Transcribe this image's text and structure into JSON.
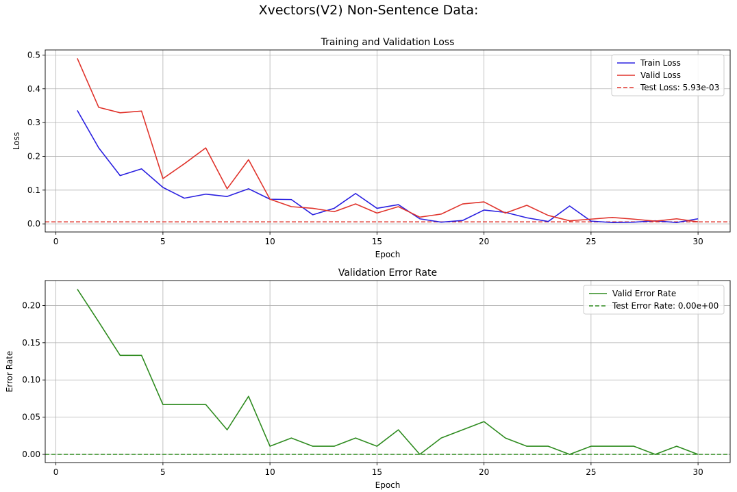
{
  "figure": {
    "title": "Xvectors(V2) Non-Sentence Data:"
  },
  "chart_data": [
    {
      "type": "line",
      "title": "Training and Validation Loss",
      "xlabel": "Epoch",
      "ylabel": "Loss",
      "xlim": [
        -0.5,
        31.5
      ],
      "ylim": [
        -0.024,
        0.515
      ],
      "xticks": [
        0,
        5,
        10,
        15,
        20,
        25,
        30
      ],
      "yticks": [
        0.0,
        0.1,
        0.2,
        0.3,
        0.4,
        0.5
      ],
      "ytick_labels": [
        "0.0",
        "0.1",
        "0.2",
        "0.3",
        "0.4",
        "0.5"
      ],
      "grid": true,
      "legend_position": "top-right",
      "x": [
        1,
        2,
        3,
        4,
        5,
        6,
        7,
        8,
        9,
        10,
        11,
        12,
        13,
        14,
        15,
        16,
        17,
        18,
        19,
        20,
        21,
        22,
        23,
        24,
        25,
        26,
        27,
        28,
        29,
        30
      ],
      "series": [
        {
          "name": "Train Loss",
          "color": "#2a20e0",
          "style": "solid",
          "values": [
            0.336,
            0.225,
            0.143,
            0.163,
            0.108,
            0.076,
            0.088,
            0.081,
            0.104,
            0.073,
            0.072,
            0.027,
            0.046,
            0.09,
            0.046,
            0.057,
            0.015,
            0.005,
            0.01,
            0.041,
            0.034,
            0.018,
            0.007,
            0.053,
            0.008,
            0.004,
            0.005,
            0.009,
            0.004,
            0.015
          ]
        },
        {
          "name": "Valid Loss",
          "color": "#e0332b",
          "style": "solid",
          "values": [
            0.49,
            0.345,
            0.329,
            0.334,
            0.134,
            0.178,
            0.225,
            0.104,
            0.19,
            0.073,
            0.051,
            0.046,
            0.036,
            0.059,
            0.032,
            0.051,
            0.02,
            0.029,
            0.059,
            0.065,
            0.032,
            0.055,
            0.025,
            0.009,
            0.014,
            0.019,
            0.014,
            0.008,
            0.015,
            0.006
          ]
        }
      ],
      "hlines": [
        {
          "name": "Test Loss: 5.93e-03",
          "value": 0.00593,
          "color": "#e0332b",
          "style": "dashed"
        }
      ]
    },
    {
      "type": "line",
      "title": "Validation Error Rate",
      "xlabel": "Epoch",
      "ylabel": "Error Rate",
      "xlim": [
        -0.5,
        31.5
      ],
      "ylim": [
        -0.011,
        0.2335
      ],
      "xticks": [
        0,
        5,
        10,
        15,
        20,
        25,
        30
      ],
      "yticks": [
        0.0,
        0.05,
        0.1,
        0.15,
        0.2
      ],
      "ytick_labels": [
        "0.00",
        "0.05",
        "0.10",
        "0.15",
        "0.20"
      ],
      "grid": true,
      "legend_position": "top-right",
      "x": [
        1,
        2,
        3,
        4,
        5,
        6,
        7,
        8,
        9,
        10,
        11,
        12,
        13,
        14,
        15,
        16,
        17,
        18,
        19,
        20,
        21,
        22,
        23,
        24,
        25,
        26,
        27,
        28,
        29,
        30
      ],
      "series": [
        {
          "name": "Valid Error Rate",
          "color": "#2e8b1f",
          "style": "solid",
          "values": [
            0.222,
            0.178,
            0.133,
            0.133,
            0.067,
            0.067,
            0.067,
            0.033,
            0.078,
            0.011,
            0.022,
            0.011,
            0.011,
            0.022,
            0.011,
            0.033,
            0.0,
            0.022,
            0.033,
            0.044,
            0.022,
            0.011,
            0.011,
            0.0,
            0.011,
            0.011,
            0.011,
            0.0,
            0.011,
            0.0
          ]
        }
      ],
      "hlines": [
        {
          "name": "Test Error Rate: 0.00e+00",
          "value": 0.0,
          "color": "#2e8b1f",
          "style": "dashed"
        }
      ]
    }
  ]
}
